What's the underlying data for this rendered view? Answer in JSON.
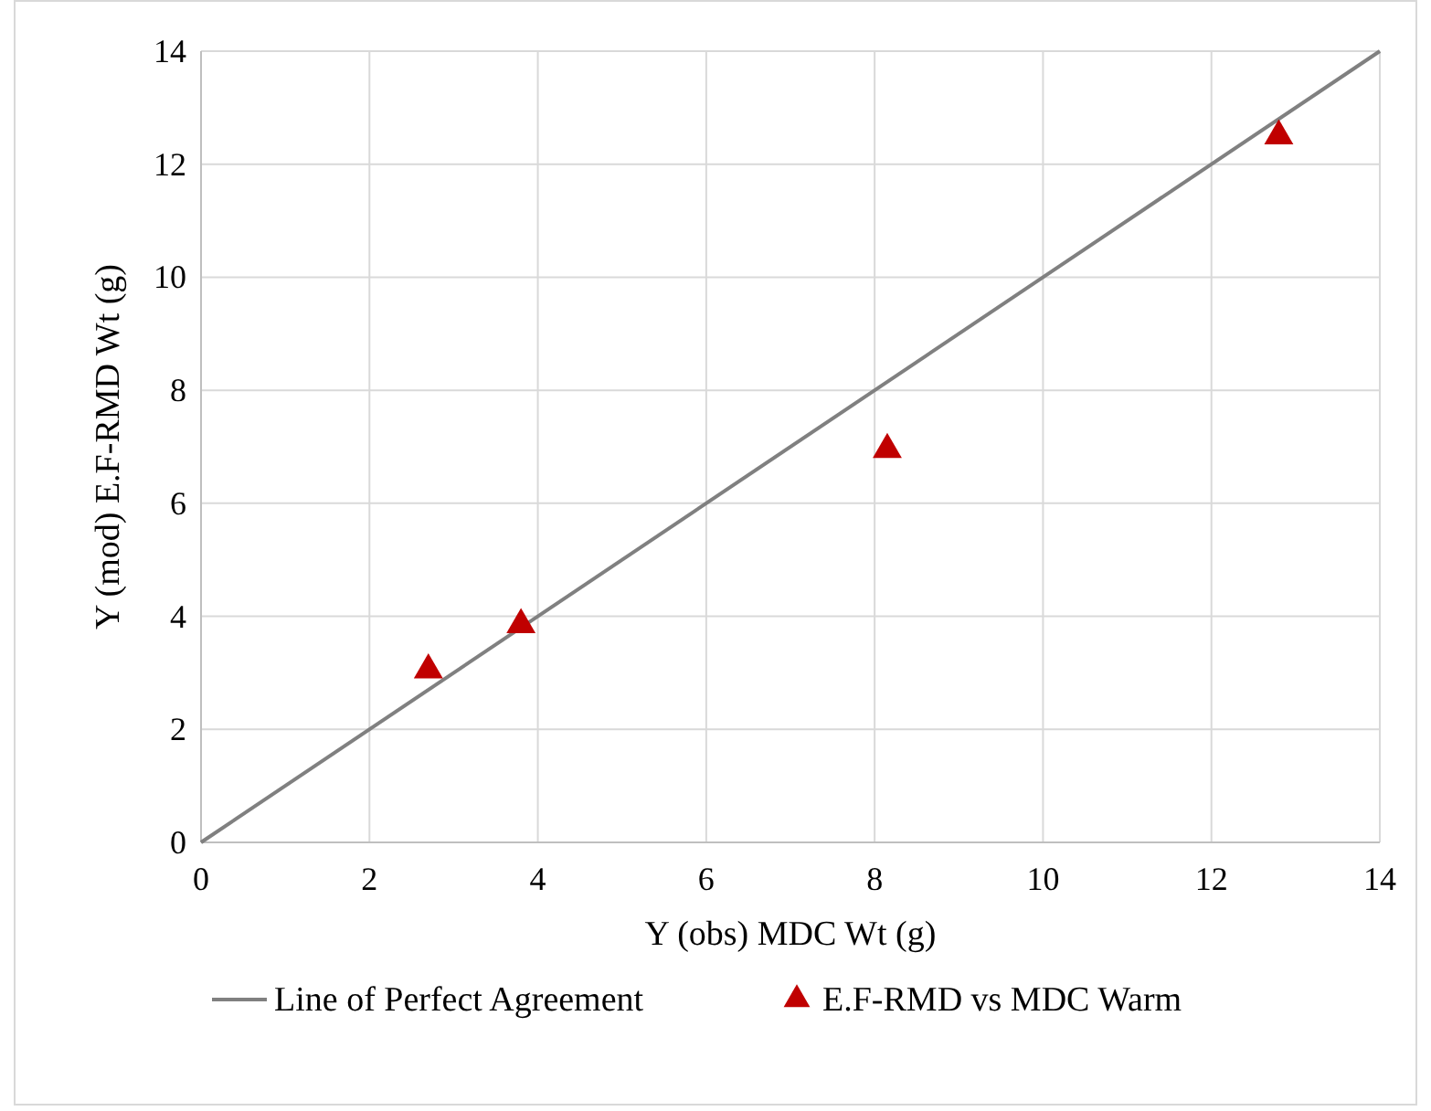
{
  "chart_data": {
    "type": "scatter",
    "xlabel": "Y (obs) MDC Wt (g)",
    "ylabel": "Y (mod) E.F-RMD Wt (g)",
    "xlim": [
      0,
      14
    ],
    "ylim": [
      0,
      14
    ],
    "xticks": [
      0,
      2,
      4,
      6,
      8,
      10,
      12,
      14
    ],
    "yticks": [
      0,
      2,
      4,
      6,
      8,
      10,
      12,
      14
    ],
    "grid": true,
    "legend": "bottom",
    "series": [
      {
        "name": "Line of Perfect Agreement",
        "type": "line",
        "color": "#808080",
        "x": [
          0,
          14
        ],
        "values": [
          0,
          14
        ],
        "marker": "none",
        "line_style": "solid"
      },
      {
        "name": "E.F-RMD vs MDC Warm",
        "type": "scatter",
        "color": "#c00000",
        "x": [
          2.7,
          3.8,
          8.15,
          12.8
        ],
        "values": [
          3.05,
          3.85,
          6.95,
          12.5
        ],
        "marker": "triangle"
      }
    ]
  }
}
